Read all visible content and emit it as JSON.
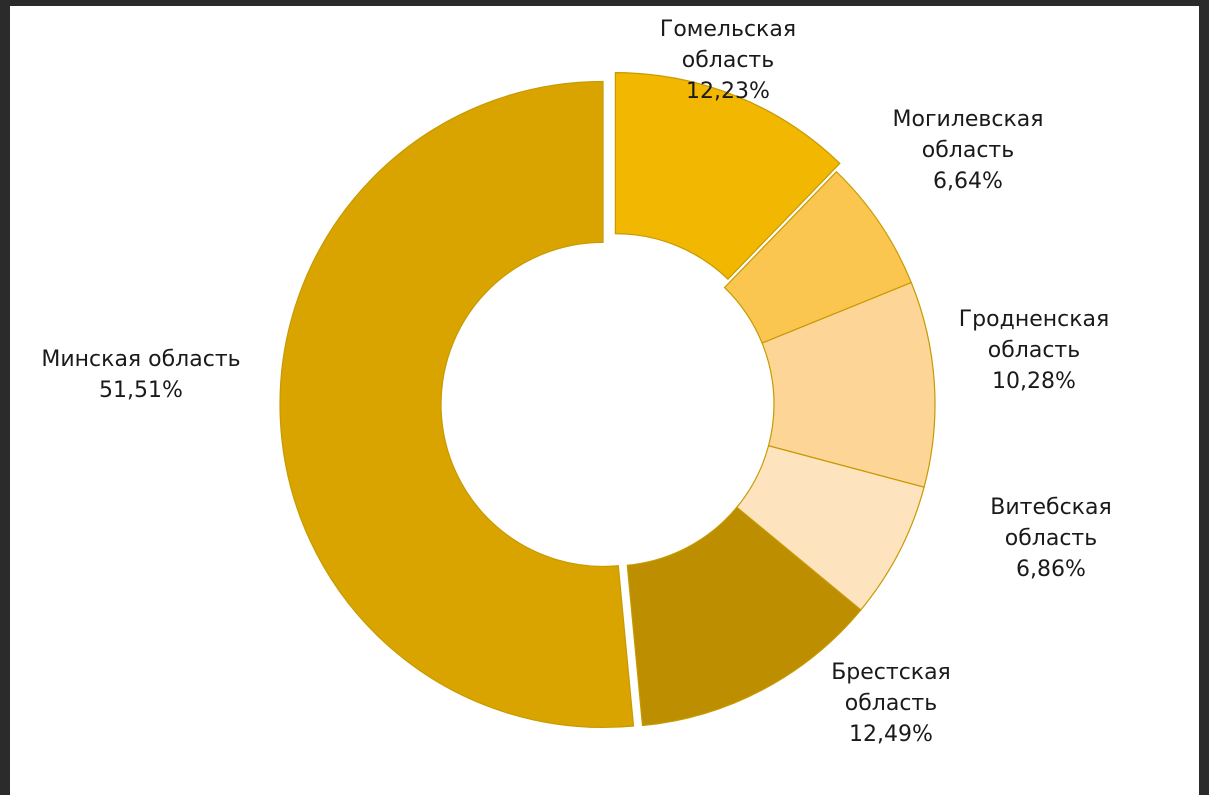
{
  "colors": {
    "frame": "#2b2b2b",
    "background": "#ffffff",
    "stroke": "#c79a00"
  },
  "chart_data": {
    "type": "pie",
    "variant": "donut",
    "start": "top (12 o'clock), clockwise",
    "slices": [
      {
        "name": "Гомельская область",
        "lines": [
          "Гомельская",
          "область",
          "12,23%"
        ],
        "value": 12.23,
        "color": "#f2b700",
        "exploded": true
      },
      {
        "name": "Могилевская область",
        "lines": [
          "Могилевская",
          "область",
          "6,64%"
        ],
        "value": 6.64,
        "color": "#fbc64f"
      },
      {
        "name": "Гродненская область",
        "lines": [
          "Гродненская",
          "область",
          "10,28%"
        ],
        "value": 10.28,
        "color": "#fdd597"
      },
      {
        "name": "Витебская область",
        "lines": [
          "Витебская",
          "область",
          "6,86%"
        ],
        "value": 6.86,
        "color": "#fee3bf"
      },
      {
        "name": "Брестская область",
        "lines": [
          "Брестская",
          "область",
          "12,49%"
        ],
        "value": 12.49,
        "color": "#bc8e00"
      },
      {
        "name": "Минская область",
        "lines": [
          "Минская область",
          "51,51%"
        ],
        "value": 51.51,
        "color": "#d9a400",
        "exploded": true
      }
    ]
  }
}
